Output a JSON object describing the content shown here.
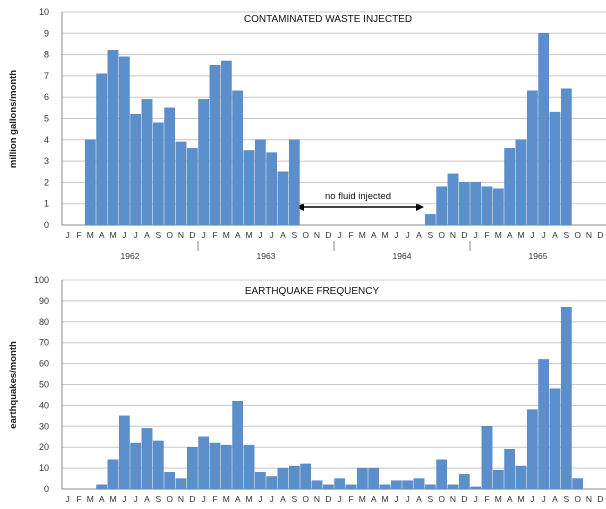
{
  "chart_data": [
    {
      "type": "bar",
      "title": "CONTAMINATED WASTE INJECTED",
      "ylabel": "million gallons/month",
      "ylim": [
        0,
        10
      ],
      "yticks": [
        "0",
        "1",
        "2",
        "3",
        "4",
        "5",
        "6",
        "7",
        "8",
        "9",
        "10"
      ],
      "months": [
        "J",
        "F",
        "M",
        "A",
        "M",
        "J",
        "J",
        "A",
        "S",
        "O",
        "N",
        "D",
        "J",
        "F",
        "M",
        "A",
        "M",
        "J",
        "J",
        "A",
        "S",
        "O",
        "N",
        "D",
        "J",
        "F",
        "M",
        "A",
        "M",
        "J",
        "J",
        "A",
        "S",
        "O",
        "N",
        "D",
        "J",
        "F",
        "M",
        "A",
        "M",
        "J",
        "J",
        "A",
        "S",
        "O",
        "N",
        "D"
      ],
      "years": [
        "1962",
        "1963",
        "1964",
        "1965"
      ],
      "values": [
        0,
        0,
        4.0,
        7.1,
        8.2,
        7.9,
        5.2,
        5.9,
        4.8,
        5.5,
        3.9,
        3.6,
        5.9,
        7.5,
        7.7,
        6.3,
        3.5,
        4.0,
        3.4,
        2.5,
        4.0,
        0,
        0,
        0,
        0,
        0,
        0,
        0,
        0,
        0,
        0,
        0,
        0.5,
        1.8,
        2.4,
        2.0,
        2.0,
        1.8,
        1.7,
        3.6,
        4.0,
        6.3,
        9.0,
        5.3,
        6.4,
        0,
        0,
        0
      ],
      "annotation": "no fluid injected",
      "grid": true
    },
    {
      "type": "bar",
      "title": "EARTHQUAKE FREQUENCY",
      "ylabel": "earthquakes/month",
      "ylim": [
        0,
        100
      ],
      "yticks": [
        "0",
        "10",
        "20",
        "30",
        "40",
        "50",
        "60",
        "70",
        "80",
        "90",
        "100"
      ],
      "months": [
        "J",
        "F",
        "M",
        "A",
        "M",
        "J",
        "J",
        "A",
        "S",
        "O",
        "N",
        "D",
        "J",
        "F",
        "M",
        "A",
        "M",
        "J",
        "J",
        "A",
        "S",
        "O",
        "N",
        "D",
        "J",
        "F",
        "M",
        "A",
        "M",
        "J",
        "J",
        "A",
        "S",
        "O",
        "N",
        "D",
        "J",
        "F",
        "M",
        "A",
        "M",
        "J",
        "J",
        "A",
        "S",
        "O",
        "N",
        "D"
      ],
      "values": [
        0,
        0,
        0,
        2,
        14,
        35,
        22,
        29,
        23,
        8,
        5,
        20,
        25,
        22,
        21,
        42,
        21,
        8,
        6,
        10,
        11,
        12,
        4,
        2,
        5,
        2,
        10,
        10,
        2,
        4,
        4,
        5,
        2,
        14,
        2,
        7,
        1,
        30,
        9,
        19,
        11,
        38,
        62,
        48,
        87,
        5,
        0,
        0
      ],
      "grid": true
    }
  ]
}
